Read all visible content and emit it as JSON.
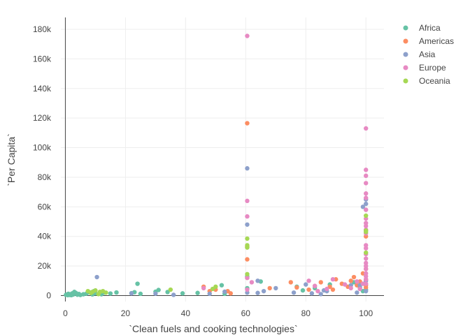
{
  "chart_data": {
    "type": "scatter",
    "title": "",
    "xlabel": "`Clean fuels and cooking technologies`",
    "ylabel": "`Per Capita`",
    "xlim": [
      -1.5,
      106
    ],
    "ylim": [
      -4000,
      188000
    ],
    "x_ticks": [
      0,
      20,
      40,
      60,
      80,
      100
    ],
    "x_tick_labels": [
      "0",
      "20",
      "40",
      "60",
      "80",
      "100"
    ],
    "y_ticks": [
      0,
      20000,
      40000,
      60000,
      80000,
      100000,
      120000,
      140000,
      160000,
      180000
    ],
    "y_tick_labels": [
      "0",
      "20k",
      "40k",
      "60k",
      "80k",
      "100k",
      "120k",
      "140k",
      "160k",
      "180k"
    ],
    "grid": true,
    "legend_position": "top-right",
    "series": [
      {
        "name": "Africa",
        "color": "#66c2a5",
        "points": [
          [
            0.2,
            500
          ],
          [
            0.5,
            800
          ],
          [
            0.8,
            300
          ],
          [
            1,
            1200
          ],
          [
            1.2,
            600
          ],
          [
            1.5,
            400
          ],
          [
            1.8,
            900
          ],
          [
            2,
            300
          ],
          [
            2.3,
            1500
          ],
          [
            2.6,
            700
          ],
          [
            3,
            2500
          ],
          [
            3.5,
            1800
          ],
          [
            4,
            600
          ],
          [
            4.5,
            1100
          ],
          [
            5,
            400
          ],
          [
            6,
            900
          ],
          [
            7,
            1300
          ],
          [
            8,
            2200
          ],
          [
            9,
            800
          ],
          [
            9.5,
            3000
          ],
          [
            10,
            1600
          ],
          [
            12,
            900
          ],
          [
            13,
            2000
          ],
          [
            15,
            1400
          ],
          [
            17,
            2100
          ],
          [
            22,
            1600
          ],
          [
            23,
            2300
          ],
          [
            24,
            8000
          ],
          [
            25,
            1200
          ],
          [
            30,
            2600
          ],
          [
            31,
            3800
          ],
          [
            34,
            2400
          ],
          [
            39,
            1500
          ],
          [
            44,
            1800
          ],
          [
            52,
            7000
          ],
          [
            53,
            1200
          ],
          [
            60.5,
            5000
          ],
          [
            60.5,
            13000
          ],
          [
            65,
            9500
          ],
          [
            77,
            6000
          ],
          [
            79,
            3500
          ],
          [
            83,
            5000
          ],
          [
            88,
            7500
          ],
          [
            96,
            9000
          ],
          [
            98,
            5500
          ],
          [
            99,
            3000
          ],
          [
            100,
            4000
          ]
        ]
      },
      {
        "name": "Americas",
        "color": "#fc8d62",
        "points": [
          [
            46,
            6000
          ],
          [
            48,
            3000
          ],
          [
            50,
            4000
          ],
          [
            54,
            3000
          ],
          [
            55,
            1500
          ],
          [
            60.5,
            116500
          ],
          [
            60.5,
            33000
          ],
          [
            60.5,
            24500
          ],
          [
            60.5,
            12000
          ],
          [
            68,
            5000
          ],
          [
            75,
            9000
          ],
          [
            77,
            5500
          ],
          [
            81,
            4000
          ],
          [
            83,
            6500
          ],
          [
            85,
            9000
          ],
          [
            88,
            6000
          ],
          [
            89,
            4000
          ],
          [
            90,
            11000
          ],
          [
            92,
            8000
          ],
          [
            94,
            6000
          ],
          [
            95,
            10000
          ],
          [
            96,
            12500
          ],
          [
            97,
            7000
          ],
          [
            98,
            9500
          ],
          [
            99,
            15000
          ],
          [
            100,
            40000
          ],
          [
            100,
            18000
          ],
          [
            100,
            11000
          ],
          [
            100,
            7000
          ],
          [
            100,
            5500
          ]
        ]
      },
      {
        "name": "Asia",
        "color": "#8da0cb",
        "points": [
          [
            10.5,
            12500
          ],
          [
            22,
            1500
          ],
          [
            30,
            1300
          ],
          [
            36,
            500
          ],
          [
            48,
            1200
          ],
          [
            53,
            2600
          ],
          [
            60.5,
            86000
          ],
          [
            60.5,
            48000
          ],
          [
            60.5,
            2000
          ],
          [
            64,
            1800
          ],
          [
            64,
            10000
          ],
          [
            66,
            3000
          ],
          [
            70,
            5000
          ],
          [
            76,
            2000
          ],
          [
            80,
            7500
          ],
          [
            82,
            1500
          ],
          [
            85,
            1000
          ],
          [
            86,
            3500
          ],
          [
            87,
            3000
          ],
          [
            95,
            7000
          ],
          [
            97,
            2000
          ],
          [
            98,
            7000
          ],
          [
            99,
            60000
          ],
          [
            100,
            65000
          ],
          [
            100,
            62000
          ],
          [
            100,
            44000
          ],
          [
            100,
            10000
          ],
          [
            100,
            3000
          ]
        ]
      },
      {
        "name": "Europe",
        "color": "#e78ac3",
        "points": [
          [
            46,
            5000
          ],
          [
            60.5,
            175500
          ],
          [
            60.5,
            64000
          ],
          [
            60.5,
            53500
          ],
          [
            60.5,
            12000
          ],
          [
            60.5,
            4000
          ],
          [
            62,
            9000
          ],
          [
            81,
            10000
          ],
          [
            83,
            6500
          ],
          [
            84,
            3000
          ],
          [
            87,
            4500
          ],
          [
            89,
            11000
          ],
          [
            93,
            7500
          ],
          [
            95,
            5000
          ],
          [
            97,
            9500
          ],
          [
            98,
            4500
          ],
          [
            99,
            8000
          ],
          [
            100,
            113000
          ],
          [
            100,
            85000
          ],
          [
            100,
            81000
          ],
          [
            100,
            76000
          ],
          [
            100,
            69000
          ],
          [
            100,
            66000
          ],
          [
            100,
            58000
          ],
          [
            100,
            52000
          ],
          [
            100,
            49000
          ],
          [
            100,
            47000
          ],
          [
            100,
            44500
          ],
          [
            100,
            42000
          ],
          [
            100,
            34000
          ],
          [
            100,
            32000
          ],
          [
            100,
            28000
          ],
          [
            100,
            25000
          ],
          [
            100,
            22000
          ],
          [
            100,
            20000
          ],
          [
            100,
            18000
          ],
          [
            100,
            15000
          ],
          [
            100,
            13000
          ],
          [
            100,
            11000
          ],
          [
            100,
            8000
          ]
        ]
      },
      {
        "name": "Oceania",
        "color": "#a6d854",
        "points": [
          [
            7.5,
            3000
          ],
          [
            8.5,
            1800
          ],
          [
            9,
            2500
          ],
          [
            10,
            3500
          ],
          [
            11,
            1000
          ],
          [
            11.5,
            2500
          ],
          [
            12.5,
            3000
          ],
          [
            13.5,
            2000
          ],
          [
            35,
            4000
          ],
          [
            49,
            4500
          ],
          [
            50,
            6000
          ],
          [
            60.5,
            38500
          ],
          [
            60.5,
            34000
          ],
          [
            60.5,
            32500
          ],
          [
            60.5,
            14500
          ],
          [
            100,
            54000
          ],
          [
            100,
            44000
          ],
          [
            100,
            43000
          ],
          [
            100,
            29000
          ]
        ]
      }
    ]
  }
}
